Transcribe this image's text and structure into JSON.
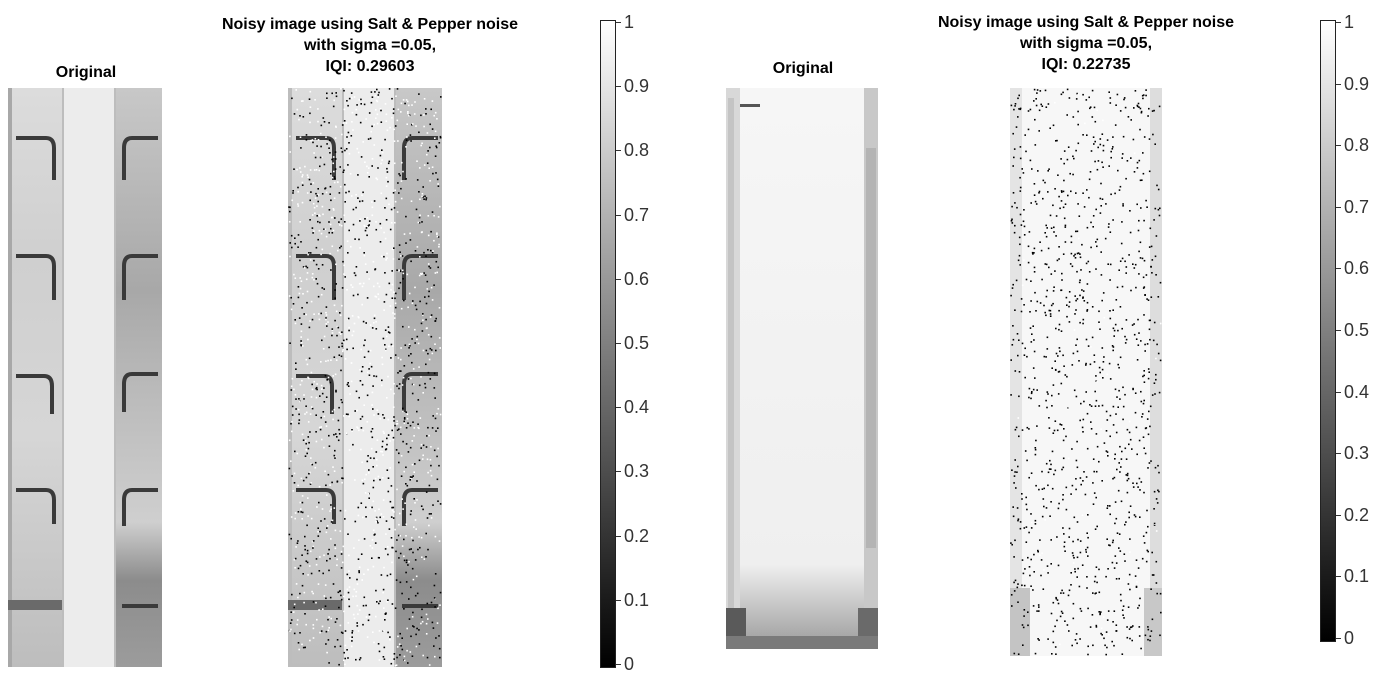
{
  "panels": [
    {
      "original_title": "Original",
      "noisy_title_lines": [
        "Noisy image using Salt & Pepper noise",
        "with sigma =0.05,",
        "IQI: 0.29603"
      ]
    },
    {
      "original_title": "Original",
      "noisy_title_lines": [
        "Noisy image using Salt & Pepper noise",
        "with sigma =0.05,",
        "IQI: 0.22735"
      ]
    }
  ],
  "colorbar": {
    "ticks_left": [
      "1",
      "0.9",
      "0.8",
      "0.7",
      "0.6",
      "0.5",
      "0.4",
      "0.3",
      "0.2",
      "0.1",
      "0"
    ],
    "ticks_right": [
      "1",
      "0.9",
      "0.8",
      "0.7",
      "0.6",
      "0.5",
      "0.4",
      "0.3",
      "0.2",
      "0.1",
      "0"
    ],
    "colormap": "gray",
    "range": [
      0,
      1
    ]
  }
}
